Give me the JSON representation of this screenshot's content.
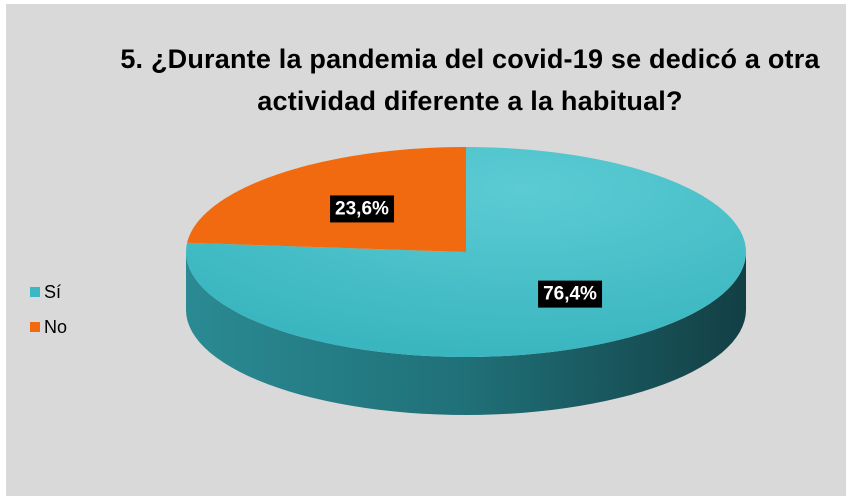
{
  "chart_data": {
    "type": "pie",
    "title": "5. ¿Durante la pandemia del covid-19 se dedicó a otra actividad diferente a la habitual?",
    "categories": [
      "Sí",
      "No"
    ],
    "values": [
      76.4,
      23.6
    ],
    "value_labels": [
      "76,4%",
      "23,6%"
    ],
    "colors": [
      "#3bb8c3",
      "#f26a10"
    ],
    "legend": "left"
  }
}
